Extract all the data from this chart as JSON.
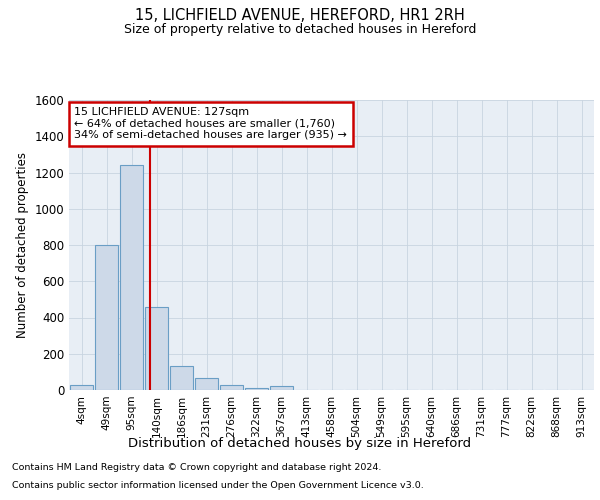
{
  "title1": "15, LICHFIELD AVENUE, HEREFORD, HR1 2RH",
  "title2": "Size of property relative to detached houses in Hereford",
  "xlabel": "Distribution of detached houses by size in Hereford",
  "ylabel": "Number of detached properties",
  "bin_labels": [
    "4sqm",
    "49sqm",
    "95sqm",
    "140sqm",
    "186sqm",
    "231sqm",
    "276sqm",
    "322sqm",
    "367sqm",
    "413sqm",
    "458sqm",
    "504sqm",
    "549sqm",
    "595sqm",
    "640sqm",
    "686sqm",
    "731sqm",
    "777sqm",
    "822sqm",
    "868sqm",
    "913sqm"
  ],
  "bar_heights": [
    25,
    800,
    1240,
    460,
    130,
    65,
    25,
    10,
    20,
    0,
    0,
    0,
    0,
    0,
    0,
    0,
    0,
    0,
    0,
    0,
    0
  ],
  "bar_color": "#cdd9e8",
  "bar_edge_color": "#6a9ec5",
  "property_line_x": 2.73,
  "annotation_line1": "15 LICHFIELD AVENUE: 127sqm",
  "annotation_line2": "← 64% of detached houses are smaller (1,760)",
  "annotation_line3": "34% of semi-detached houses are larger (935) →",
  "annotation_box_color": "#cc0000",
  "ylim": [
    0,
    1600
  ],
  "yticks": [
    0,
    200,
    400,
    600,
    800,
    1000,
    1200,
    1400,
    1600
  ],
  "grid_color": "#c8d4e0",
  "background_color": "#e8eef5",
  "footer1": "Contains HM Land Registry data © Crown copyright and database right 2024.",
  "footer2": "Contains public sector information licensed under the Open Government Licence v3.0."
}
